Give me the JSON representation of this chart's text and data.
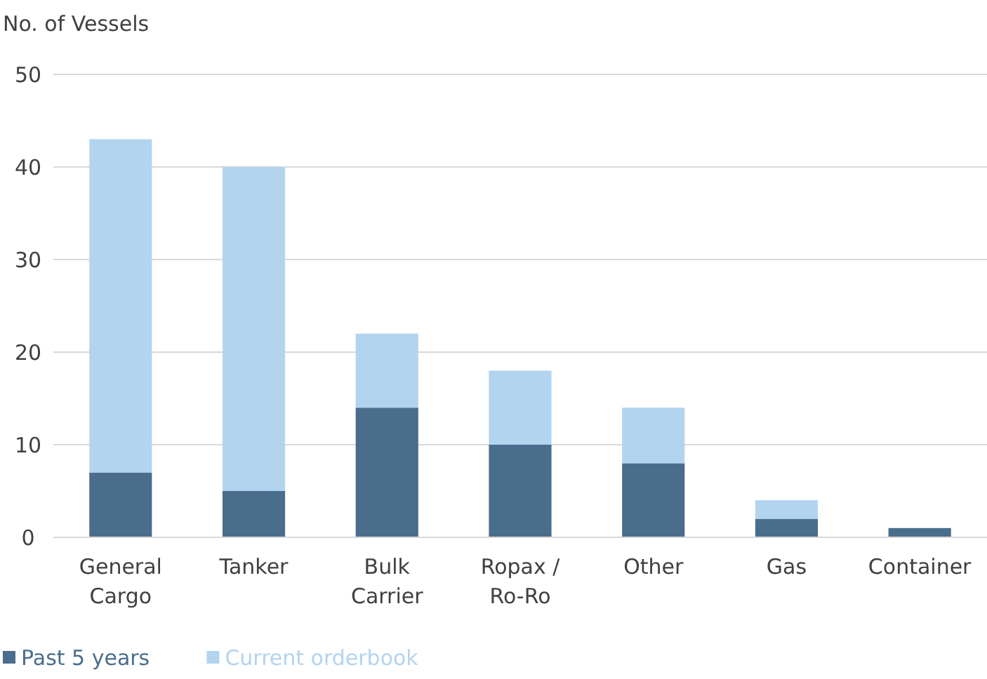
{
  "chart_data": {
    "type": "bar",
    "ylabel": "No. of Vessels",
    "categories": [
      "General Cargo",
      "Tanker",
      "Bulk Carrier",
      "Ropax / Ro-Ro",
      "Other",
      "Gas",
      "Container"
    ],
    "series": [
      {
        "name": "Past 5 years",
        "color": "#4a6d8c",
        "values": [
          7,
          5,
          14,
          10,
          8,
          2,
          1
        ]
      },
      {
        "name": "Current orderbook",
        "color": "#b3d4ef",
        "values": [
          36,
          35,
          8,
          8,
          6,
          2,
          0
        ]
      }
    ],
    "stacked": true,
    "ylim": [
      0,
      50
    ],
    "yticks": [
      0,
      10,
      20,
      30,
      40,
      50
    ],
    "grid": "y",
    "legend": "bottom left"
  }
}
